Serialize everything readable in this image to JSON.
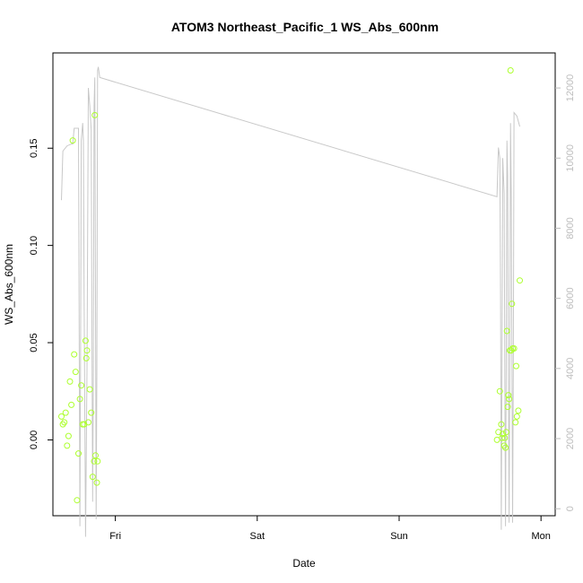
{
  "chart_data": {
    "type": "scatter",
    "title": "ATOM3 Northeast_Pacific_1 WS_Abs_600nm",
    "xlabel": "Date",
    "ylabel": "WS_Abs_600nm",
    "y2label": "",
    "x_tick_labels": [
      "Fri",
      "Sat",
      "Sun",
      "Mon"
    ],
    "x_tick_days": [
      1,
      2,
      3,
      4
    ],
    "xlim_days": [
      0.56,
      4.1
    ],
    "ylim": [
      -0.039,
      0.199
    ],
    "y_ticks": [
      0.0,
      0.05,
      0.1,
      0.15
    ],
    "y_tick_labels": [
      "0.00",
      "0.05",
      "0.10",
      "0.15"
    ],
    "y2lim": [
      -200,
      13000
    ],
    "y2_ticks": [
      0,
      2000,
      4000,
      6000,
      8000,
      10000,
      12000
    ],
    "y2_tick_labels": [
      "0",
      "2000",
      "4000",
      "6000",
      "8000",
      "10000",
      "12000"
    ],
    "grid": false,
    "series": [
      {
        "kind": "points",
        "axis": "left",
        "color": "#adff2f",
        "points": [
          [
            0.62,
            0.012
          ],
          [
            0.63,
            0.008
          ],
          [
            0.64,
            0.009
          ],
          [
            0.65,
            0.014
          ],
          [
            0.66,
            -0.003
          ],
          [
            0.67,
            0.002
          ],
          [
            0.68,
            0.03
          ],
          [
            0.69,
            0.018
          ],
          [
            0.7,
            0.154
          ],
          [
            0.71,
            0.044
          ],
          [
            0.72,
            0.035
          ],
          [
            0.73,
            -0.031
          ],
          [
            0.74,
            -0.007
          ],
          [
            0.75,
            0.021
          ],
          [
            0.76,
            0.028
          ],
          [
            0.77,
            0.008
          ],
          [
            0.78,
            0.008
          ],
          [
            0.79,
            0.051
          ],
          [
            0.795,
            0.042
          ],
          [
            0.8,
            0.046
          ],
          [
            0.81,
            0.009
          ],
          [
            0.82,
            0.026
          ],
          [
            0.83,
            0.014
          ],
          [
            0.84,
            -0.019
          ],
          [
            0.85,
            -0.011
          ],
          [
            0.855,
            0.167
          ],
          [
            0.86,
            -0.008
          ],
          [
            0.87,
            -0.022
          ],
          [
            0.875,
            -0.011
          ],
          [
            3.69,
            0.0
          ],
          [
            3.7,
            0.004
          ],
          [
            3.71,
            0.025
          ],
          [
            3.72,
            0.008
          ],
          [
            3.725,
            0.001
          ],
          [
            3.73,
            0.003
          ],
          [
            3.74,
            -0.003
          ],
          [
            3.745,
            0.001
          ],
          [
            3.75,
            -0.004
          ],
          [
            3.755,
            0.004
          ],
          [
            3.76,
            0.056
          ],
          [
            3.765,
            0.017
          ],
          [
            3.77,
            0.023
          ],
          [
            3.775,
            0.021
          ],
          [
            3.78,
            0.046
          ],
          [
            3.785,
            0.19
          ],
          [
            3.79,
            0.046
          ],
          [
            3.795,
            0.07
          ],
          [
            3.8,
            0.047
          ],
          [
            3.81,
            0.047
          ],
          [
            3.82,
            0.009
          ],
          [
            3.825,
            0.038
          ],
          [
            3.83,
            0.012
          ],
          [
            3.84,
            0.015
          ],
          [
            3.85,
            0.082
          ]
        ]
      },
      {
        "kind": "line",
        "axis": "right",
        "color": "#c8c8c8",
        "points": [
          [
            0.62,
            8800
          ],
          [
            0.63,
            10200
          ],
          [
            0.66,
            10350
          ],
          [
            0.69,
            10400
          ],
          [
            0.7,
            10400
          ],
          [
            0.71,
            10850
          ],
          [
            0.74,
            10850
          ],
          [
            0.745,
            5000
          ],
          [
            0.75,
            -500
          ],
          [
            0.755,
            4000
          ],
          [
            0.76,
            10500
          ],
          [
            0.77,
            11000
          ],
          [
            0.775,
            10500
          ],
          [
            0.78,
            6000
          ],
          [
            0.79,
            -800
          ],
          [
            0.8,
            4000
          ],
          [
            0.81,
            12000
          ],
          [
            0.82,
            11500
          ],
          [
            0.83,
            10800
          ],
          [
            0.835,
            5000
          ],
          [
            0.84,
            200
          ],
          [
            0.845,
            4000
          ],
          [
            0.85,
            11500
          ],
          [
            0.855,
            12300
          ],
          [
            0.86,
            6000
          ],
          [
            0.865,
            -300
          ],
          [
            0.87,
            4000
          ],
          [
            0.875,
            12500
          ],
          [
            0.88,
            12600
          ],
          [
            0.89,
            12300
          ],
          [
            3.69,
            8900
          ],
          [
            3.7,
            10300
          ],
          [
            3.71,
            10000
          ],
          [
            3.715,
            6000
          ],
          [
            3.72,
            -600
          ],
          [
            3.725,
            4000
          ],
          [
            3.73,
            10000
          ],
          [
            3.74,
            9000
          ],
          [
            3.745,
            4000
          ],
          [
            3.75,
            -500
          ],
          [
            3.755,
            4000
          ],
          [
            3.76,
            10500
          ],
          [
            3.765,
            9500
          ],
          [
            3.77,
            4000
          ],
          [
            3.775,
            -400
          ],
          [
            3.78,
            4000
          ],
          [
            3.785,
            11000
          ],
          [
            3.79,
            9000
          ],
          [
            3.795,
            4000
          ],
          [
            3.8,
            -400
          ],
          [
            3.805,
            4000
          ],
          [
            3.81,
            11300
          ],
          [
            3.83,
            11200
          ],
          [
            3.85,
            10900
          ]
        ]
      }
    ]
  }
}
